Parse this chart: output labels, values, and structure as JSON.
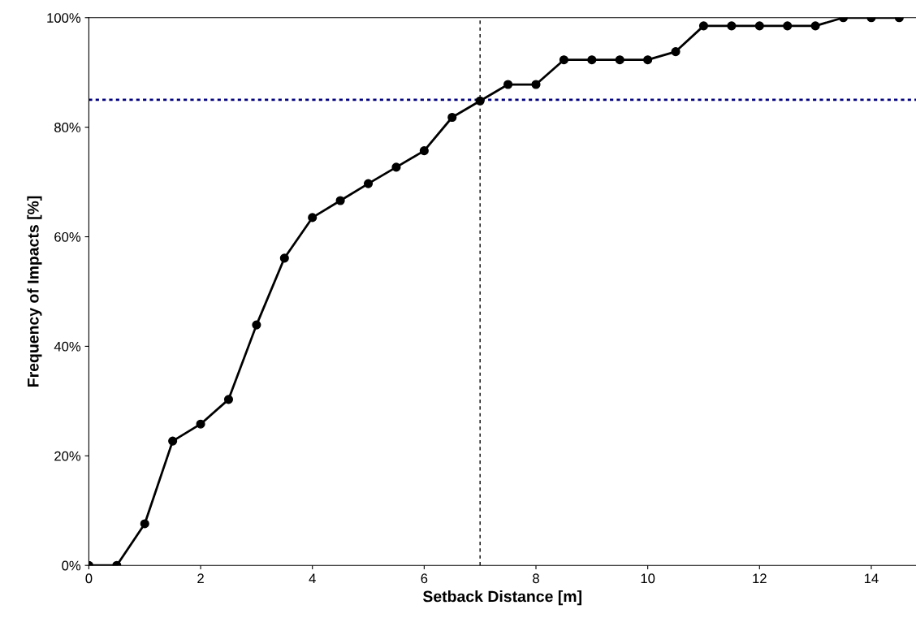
{
  "chart_data": {
    "type": "line",
    "xlabel": "Setback Distance [m]",
    "ylabel": "Frequency of Impacts [%]",
    "x": [
      0,
      0.5,
      1,
      1.5,
      2,
      2.5,
      3,
      3.5,
      4,
      4.5,
      5,
      5.5,
      6,
      6.5,
      7,
      7.5,
      8,
      8.5,
      9,
      9.5,
      10,
      10.5,
      11,
      11.5,
      12,
      12.5,
      13,
      13.5,
      14,
      14.5
    ],
    "series": [
      {
        "color": "#000000",
        "values": [
          0,
          0,
          7.6,
          22.7,
          25.8,
          30.3,
          43.9,
          56.1,
          63.5,
          66.6,
          69.7,
          72.7,
          75.7,
          81.8,
          84.8,
          87.8,
          87.8,
          92.3,
          92.3,
          92.3,
          92.3,
          93.8,
          98.5,
          98.5,
          98.5,
          98.5,
          98.5,
          100,
          100,
          100
        ]
      }
    ],
    "marker": "circle",
    "line_style": "solid",
    "xlim": [
      0,
      14.8
    ],
    "xticks": [
      0,
      2,
      4,
      6,
      8,
      10,
      12,
      14
    ],
    "ylim": [
      0,
      100
    ],
    "yticks": [
      {
        "value": 0,
        "label": "0%"
      },
      {
        "value": 20,
        "label": "20%"
      },
      {
        "value": 40,
        "label": "40%"
      },
      {
        "value": 60,
        "label": "60%"
      },
      {
        "value": 80,
        "label": "80%"
      },
      {
        "value": 100,
        "label": "100%"
      }
    ],
    "ref_lines": [
      {
        "axis": "y",
        "value": 85,
        "color": "#000080",
        "line_style": "dotted"
      },
      {
        "axis": "x",
        "value": 7,
        "color": "#000000",
        "line_style": "dashed"
      }
    ]
  }
}
